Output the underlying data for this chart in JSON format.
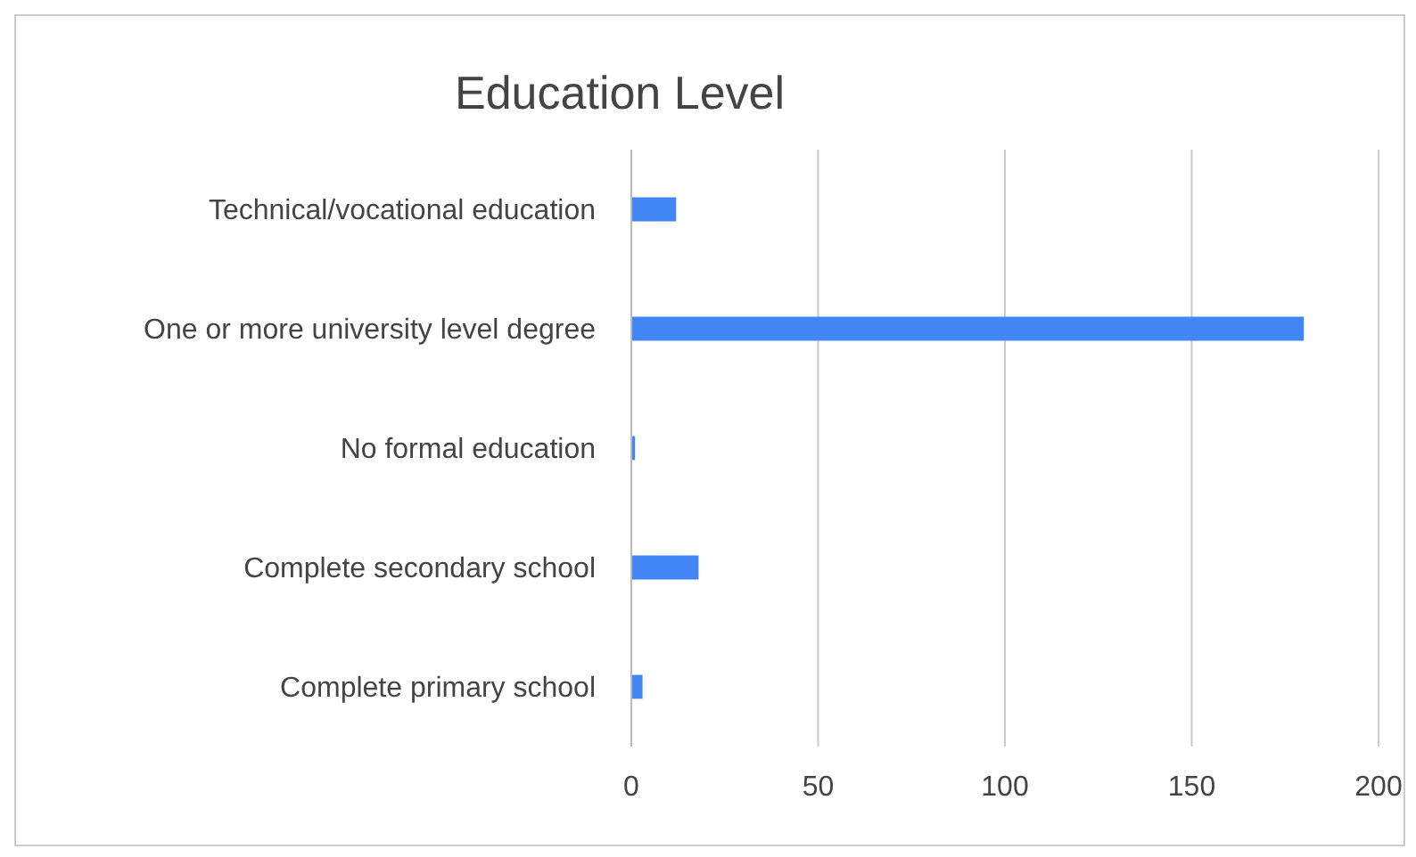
{
  "chart_data": {
    "type": "bar",
    "orientation": "horizontal",
    "title": "Education Level",
    "categories": [
      "Technical/vocational education",
      "One or more university level degree",
      "No formal education",
      "Complete secondary school",
      "Complete primary school"
    ],
    "values": [
      12,
      180,
      1,
      18,
      3
    ],
    "color": "#4285f4",
    "xlim": [
      0,
      200
    ],
    "xticks": [
      0,
      50,
      100,
      150,
      200
    ],
    "grid": "x"
  }
}
